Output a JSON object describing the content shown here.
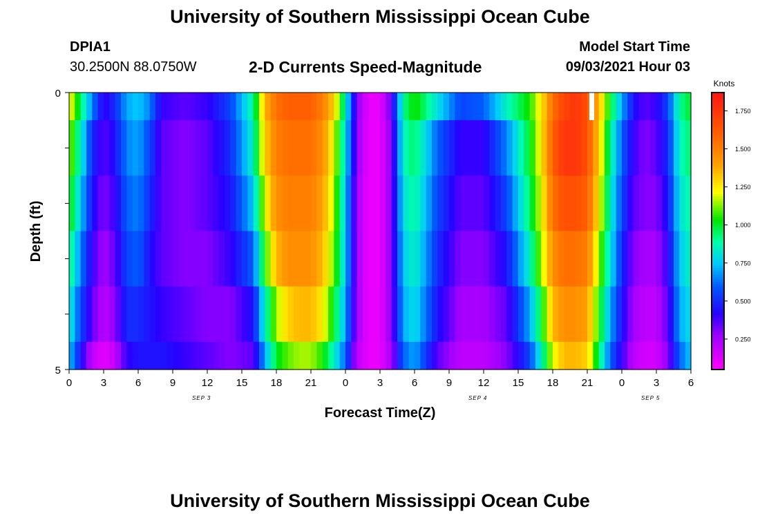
{
  "header": {
    "title": "University of Southern Mississippi Ocean Cube",
    "station": "DPIA1",
    "coords": "30.2500N  88.0750W",
    "subtitle": "2-D Currents Speed-Magnitude",
    "model_start_label": "Model Start Time",
    "model_start_value": "09/03/2021 Hour 03"
  },
  "footer": {
    "title": "University of Southern Mississippi Ocean Cube"
  },
  "chart_data": {
    "type": "heatmap",
    "title": "2-D Currents Speed-Magnitude",
    "xlabel": "Forecast Time(Z)",
    "ylabel": "Depth (ft)",
    "x_tick_labels": [
      "0",
      "3",
      "6",
      "9",
      "12",
      "15",
      "18",
      "21",
      "0",
      "3",
      "6",
      "9",
      "12",
      "15",
      "18",
      "21",
      "0",
      "3",
      "6"
    ],
    "date_labels": [
      {
        "text": "SEP 3",
        "hour": 11.5
      },
      {
        "text": "SEP 4",
        "hour": 35.5
      },
      {
        "text": "SEP 5",
        "hour": 50.5
      }
    ],
    "x_range_hours": [
      0,
      54
    ],
    "y_range_ft": [
      0,
      5
    ],
    "y_tick_labels": [
      "0",
      "5"
    ],
    "depth_rows_ft": [
      0.25,
      1.0,
      2.0,
      3.0,
      4.0,
      4.75
    ],
    "colorbar": {
      "label": "Knots",
      "range": [
        0.05,
        1.87
      ],
      "tick_labels": [
        "0.250",
        "0.500",
        "0.750",
        "1.000",
        "1.250",
        "1.500",
        "1.750"
      ],
      "tick_values": [
        0.25,
        0.5,
        0.75,
        1.0,
        1.25,
        1.5,
        1.75
      ]
    },
    "speed_knots_by_depth": [
      {
        "hours": [
          0,
          1,
          2,
          3,
          4,
          5,
          6,
          7,
          8,
          10,
          12,
          14,
          16,
          17,
          18,
          19,
          20,
          21,
          22,
          23,
          24,
          25,
          26,
          27,
          28,
          29,
          30,
          32,
          34,
          36,
          38,
          40,
          41,
          42,
          43,
          44,
          45,
          46,
          47,
          48,
          49,
          50,
          51,
          52,
          53,
          54
        ],
        "values": [
          1.25,
          0.95,
          0.65,
          0.4,
          0.5,
          0.7,
          0.75,
          0.65,
          0.4,
          0.35,
          0.4,
          0.55,
          0.9,
          1.35,
          1.55,
          1.6,
          1.6,
          1.6,
          1.5,
          1.3,
          0.85,
          0.3,
          0.1,
          0.1,
          0.35,
          0.9,
          1.05,
          0.8,
          0.55,
          0.6,
          0.85,
          1.05,
          1.25,
          1.55,
          1.7,
          1.75,
          1.65,
          1.35,
          1.0,
          0.7,
          0.45,
          0.35,
          0.4,
          0.55,
          0.9,
          1.0
        ]
      },
      {
        "hours": [
          0,
          1,
          2,
          3,
          4,
          5,
          6,
          7,
          8,
          10,
          12,
          14,
          16,
          17,
          18,
          19,
          20,
          21,
          22,
          23,
          24,
          25,
          26,
          27,
          28,
          29,
          30,
          32,
          34,
          36,
          38,
          40,
          41,
          42,
          43,
          44,
          45,
          46,
          47,
          48,
          49,
          50,
          51,
          52,
          53,
          54
        ],
        "values": [
          1.15,
          0.85,
          0.5,
          0.35,
          0.45,
          0.65,
          0.7,
          0.55,
          0.35,
          0.3,
          0.35,
          0.5,
          0.85,
          1.3,
          1.5,
          1.55,
          1.55,
          1.55,
          1.45,
          1.2,
          0.8,
          0.28,
          0.1,
          0.1,
          0.3,
          0.85,
          0.95,
          0.6,
          0.4,
          0.4,
          0.65,
          1.0,
          1.25,
          1.6,
          1.75,
          1.75,
          1.65,
          1.3,
          0.9,
          0.6,
          0.4,
          0.3,
          0.35,
          0.5,
          0.85,
          0.95
        ]
      },
      {
        "hours": [
          0,
          1,
          2,
          3,
          4,
          5,
          6,
          7,
          8,
          10,
          12,
          14,
          16,
          17,
          18,
          19,
          20,
          21,
          22,
          23,
          24,
          25,
          26,
          27,
          28,
          29,
          30,
          32,
          34,
          36,
          38,
          40,
          41,
          42,
          43,
          44,
          45,
          46,
          47,
          48,
          49,
          50,
          51,
          52,
          53,
          54
        ],
        "values": [
          1.05,
          0.75,
          0.45,
          0.3,
          0.4,
          0.6,
          0.65,
          0.5,
          0.35,
          0.3,
          0.35,
          0.45,
          0.75,
          1.2,
          1.45,
          1.5,
          1.5,
          1.5,
          1.4,
          1.15,
          0.75,
          0.25,
          0.1,
          0.1,
          0.3,
          0.8,
          0.9,
          0.55,
          0.35,
          0.35,
          0.55,
          0.95,
          1.2,
          1.55,
          1.65,
          1.65,
          1.6,
          1.25,
          0.85,
          0.55,
          0.35,
          0.3,
          0.3,
          0.45,
          0.8,
          0.9
        ]
      },
      {
        "hours": [
          0,
          1,
          2,
          3,
          4,
          5,
          6,
          7,
          8,
          10,
          12,
          14,
          16,
          17,
          18,
          19,
          20,
          21,
          22,
          23,
          24,
          25,
          26,
          27,
          28,
          29,
          30,
          32,
          34,
          36,
          38,
          40,
          41,
          42,
          43,
          44,
          45,
          46,
          47,
          48,
          49,
          50,
          51,
          52,
          53,
          54
        ],
        "values": [
          0.95,
          0.65,
          0.4,
          0.25,
          0.35,
          0.55,
          0.6,
          0.45,
          0.35,
          0.3,
          0.3,
          0.4,
          0.6,
          1.05,
          1.35,
          1.45,
          1.45,
          1.45,
          1.35,
          1.1,
          0.75,
          0.25,
          0.1,
          0.1,
          0.3,
          0.75,
          0.85,
          0.5,
          0.3,
          0.3,
          0.45,
          0.85,
          1.15,
          1.45,
          1.55,
          1.55,
          1.5,
          1.15,
          0.8,
          0.5,
          0.3,
          0.25,
          0.25,
          0.4,
          0.75,
          0.85
        ]
      },
      {
        "hours": [
          0,
          1,
          2,
          3,
          4,
          5,
          6,
          7,
          8,
          10,
          12,
          14,
          16,
          17,
          18,
          19,
          20,
          21,
          22,
          23,
          24,
          25,
          26,
          27,
          28,
          29,
          30,
          32,
          34,
          36,
          38,
          40,
          41,
          42,
          43,
          44,
          45,
          46,
          47,
          48,
          49,
          50,
          51,
          52,
          53,
          54
        ],
        "values": [
          0.85,
          0.55,
          0.35,
          0.2,
          0.3,
          0.5,
          0.5,
          0.45,
          0.4,
          0.35,
          0.3,
          0.3,
          0.45,
          0.85,
          1.15,
          1.3,
          1.35,
          1.35,
          1.25,
          1.0,
          0.7,
          0.25,
          0.1,
          0.1,
          0.3,
          0.7,
          0.8,
          0.45,
          0.25,
          0.25,
          0.35,
          0.7,
          1.0,
          1.35,
          1.45,
          1.45,
          1.4,
          1.05,
          0.7,
          0.45,
          0.25,
          0.2,
          0.2,
          0.35,
          0.7,
          0.8
        ]
      },
      {
        "hours": [
          0,
          1,
          2,
          3,
          4,
          5,
          6,
          7,
          8,
          10,
          12,
          14,
          16,
          17,
          18,
          19,
          20,
          21,
          22,
          23,
          24,
          25,
          26,
          27,
          28,
          29,
          30,
          32,
          34,
          36,
          38,
          40,
          41,
          42,
          43,
          44,
          45,
          46,
          47,
          48,
          49,
          50,
          51,
          52,
          53,
          54
        ],
        "values": [
          0.75,
          0.45,
          0.2,
          0.1,
          0.2,
          0.4,
          0.45,
          0.45,
          0.45,
          0.4,
          0.35,
          0.3,
          0.35,
          0.7,
          1.0,
          1.1,
          1.15,
          1.15,
          1.05,
          0.85,
          0.6,
          0.2,
          0.1,
          0.1,
          0.25,
          0.6,
          0.7,
          0.35,
          0.2,
          0.2,
          0.3,
          0.55,
          0.85,
          1.2,
          1.35,
          1.35,
          1.3,
          0.95,
          0.6,
          0.4,
          0.2,
          0.15,
          0.15,
          0.3,
          0.6,
          0.75
        ]
      }
    ]
  }
}
